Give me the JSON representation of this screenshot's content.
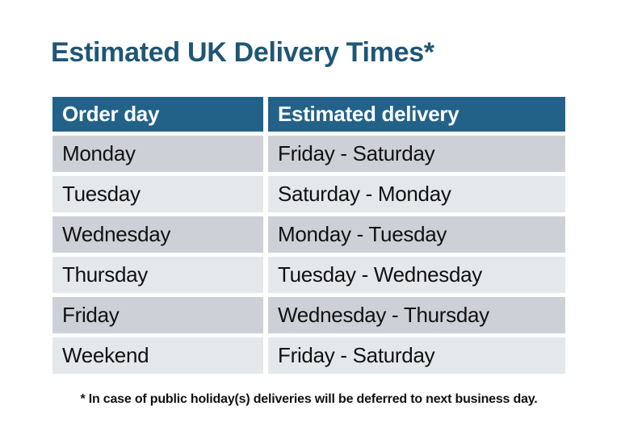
{
  "page": {
    "title": "Estimated UK Delivery Times*",
    "footnote": "* In case of public holiday(s) deliveries will be deferred to next business day."
  },
  "table": {
    "headers": {
      "order_day": "Order day",
      "estimated_delivery": "Estimated delivery"
    },
    "rows": [
      {
        "order_day": "Monday",
        "estimated_delivery": "Friday - Saturday"
      },
      {
        "order_day": "Tuesday",
        "estimated_delivery": "Saturday - Monday"
      },
      {
        "order_day": "Wednesday",
        "estimated_delivery": "Monday - Tuesday"
      },
      {
        "order_day": "Thursday",
        "estimated_delivery": "Tuesday - Wednesday"
      },
      {
        "order_day": "Friday",
        "estimated_delivery": "Wednesday - Thursday"
      },
      {
        "order_day": "Weekend",
        "estimated_delivery": "Friday - Saturday"
      }
    ]
  },
  "colors": {
    "page_bg": "#FFFFFF",
    "title_text": "#1F5674",
    "header_bg": "#226289",
    "header_text": "#FFFFFF",
    "row_dark_bg": "#CDD1D7",
    "row_light_bg": "#E5E8EB",
    "body_text": "#111111"
  }
}
